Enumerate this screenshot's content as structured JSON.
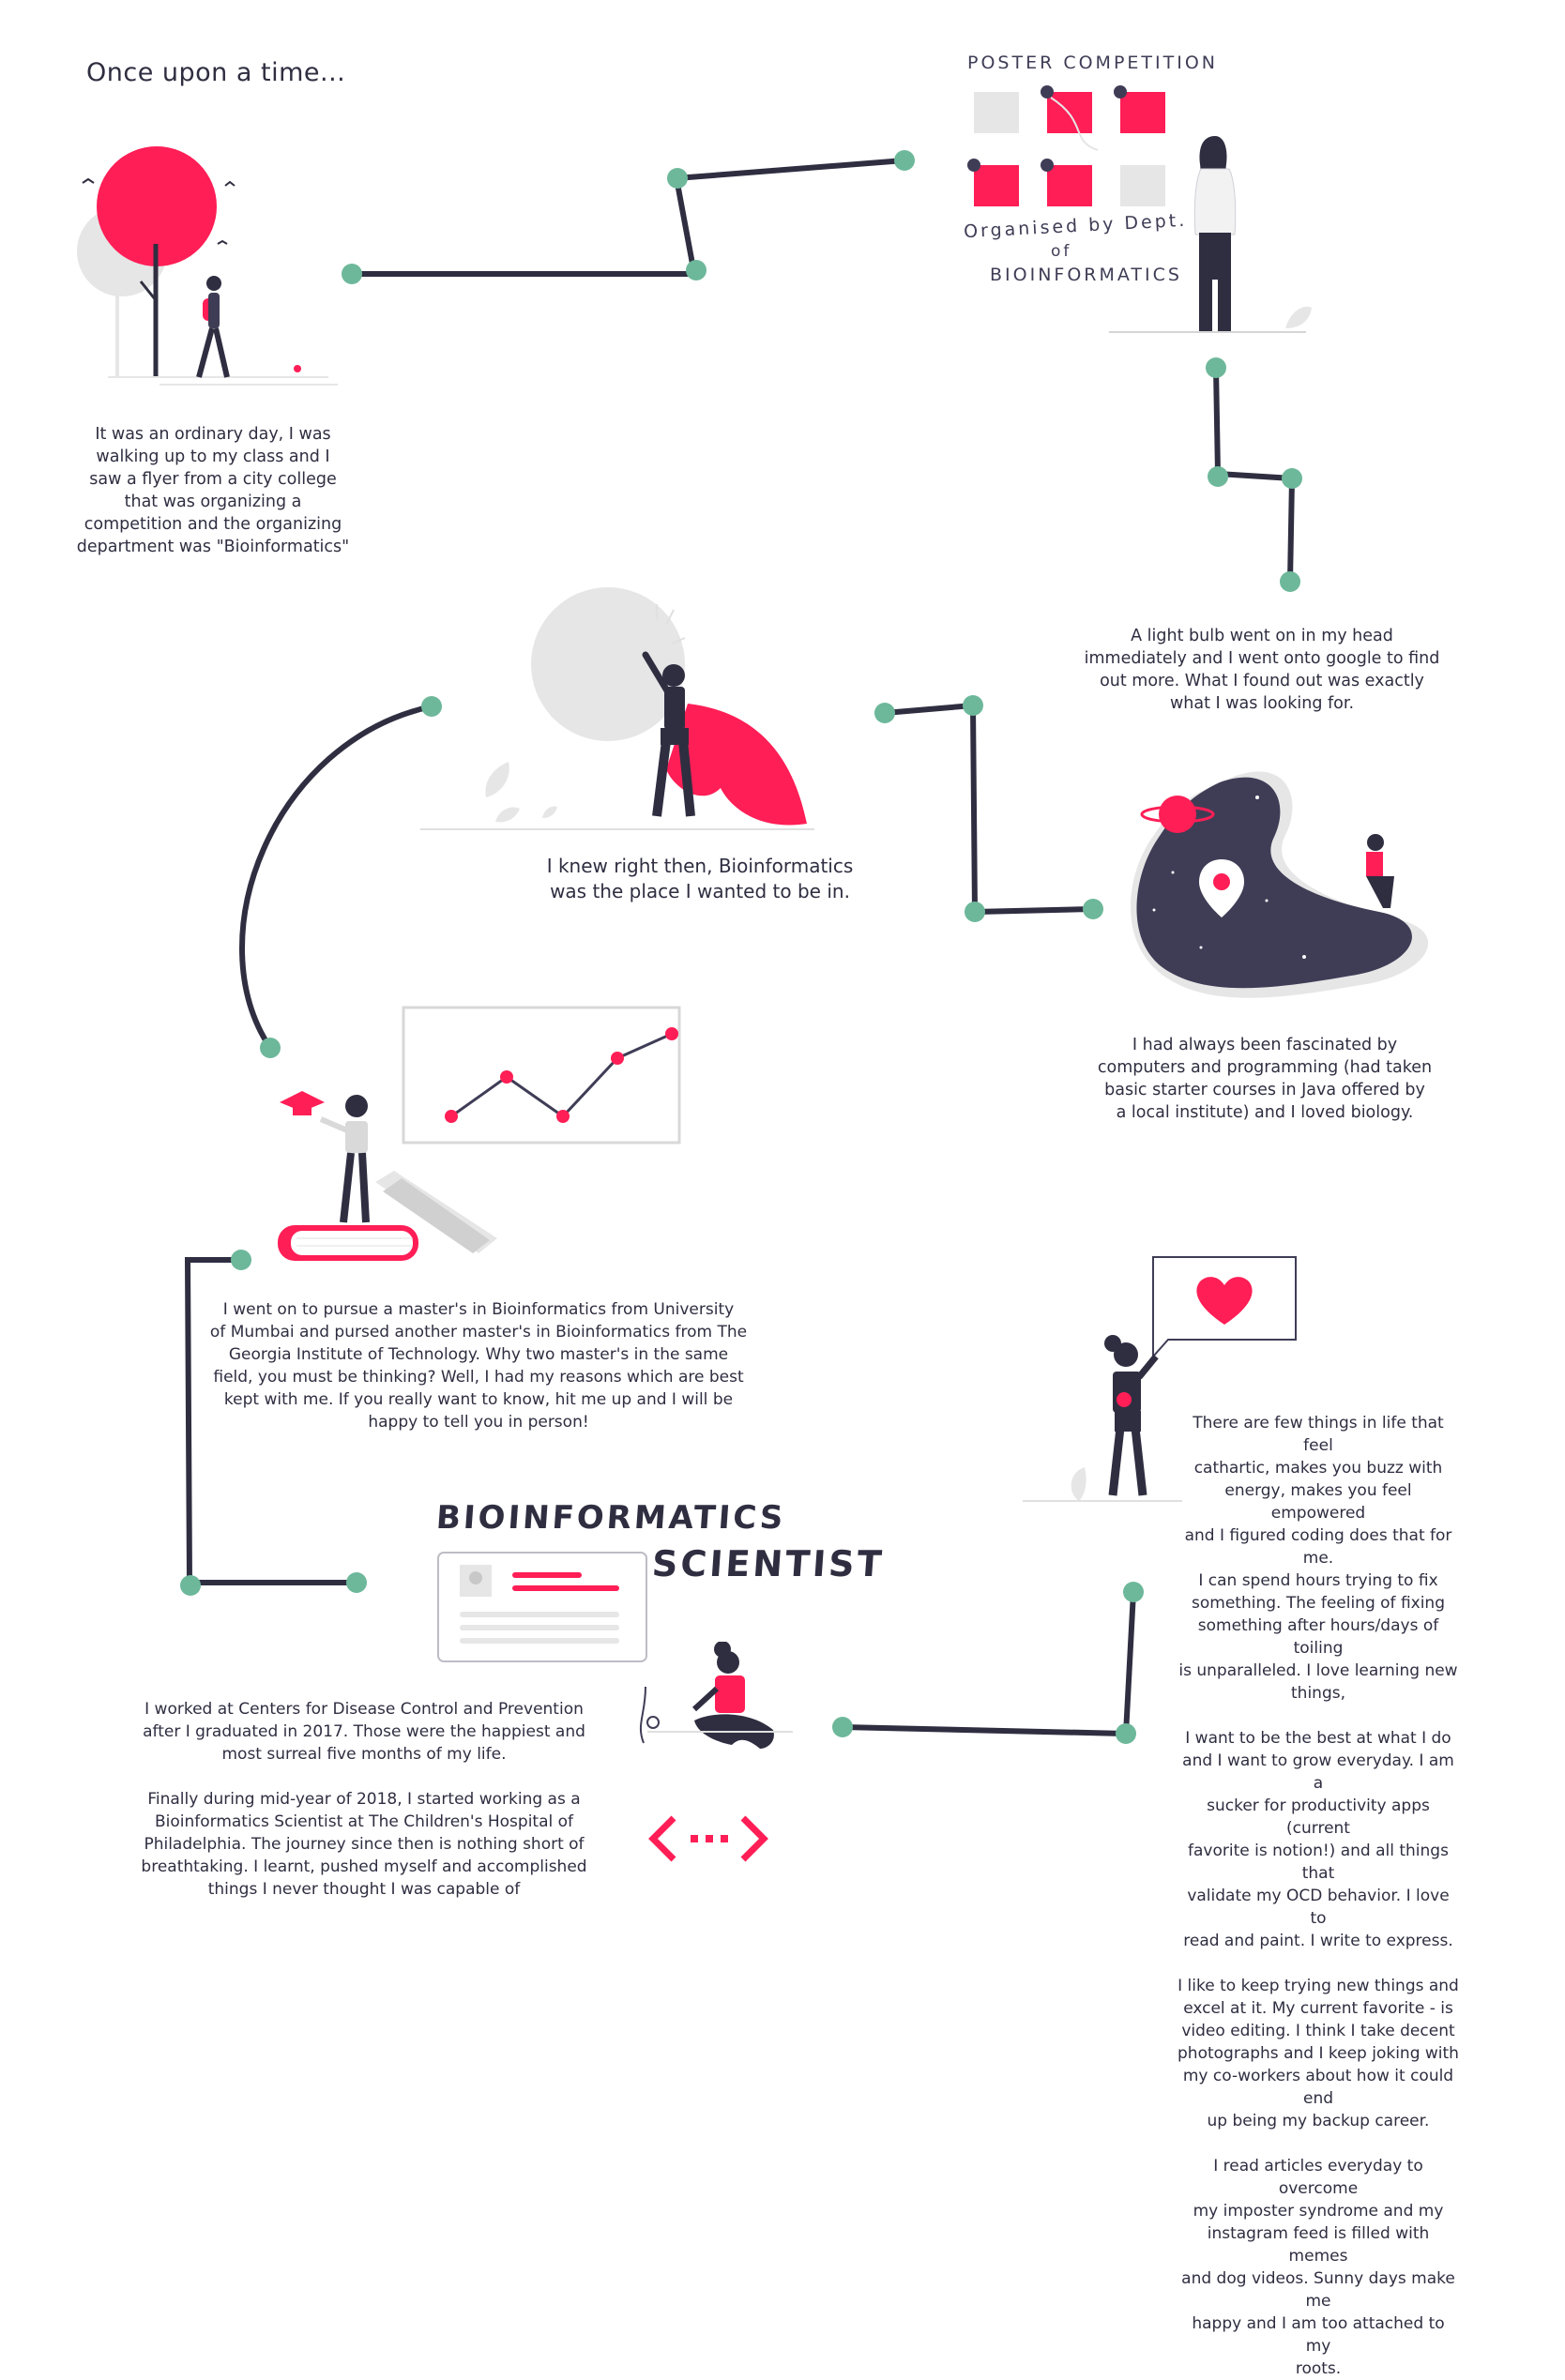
{
  "title": "Once upon a time...",
  "poster": {
    "heading": "POSTER COMPETITION",
    "organised_line1": "Organised by Dept.",
    "organised_line2": "of",
    "organised_line3": "BIOINFORMATICS"
  },
  "job_title": {
    "line1": "BIOINFORMATICS",
    "line2": "SCIENTIST"
  },
  "code_icon": "<···>",
  "stories": {
    "s1": "It was an ordinary day, I was\nwalking up to my class and I\nsaw a flyer from a city college\nthat was organizing a\ncompetition and the organizing\ndepartment was \"Bioinformatics\"",
    "s2": "A light bulb went on in my head\nimmediately and I went onto google to find\nout more. What I found out was exactly\nwhat I was looking for.",
    "s3": "I knew right then, Bioinformatics\nwas the place I wanted to be in.",
    "s4": "I had always been fascinated by\ncomputers and programming (had taken\nbasic starter courses in Java offered by\na local institute) and I loved biology.",
    "s5": "I went on to pursue a master's in Bioinformatics from University\nof Mumbai and pursed another master's in Bioinformatics from The\nGeorgia Institute of Technology. Why two master's in the same\nfield, you must be thinking? Well, I had my reasons which are best\nkept with me. If you really want to know, hit me up and I will be\nhappy to tell you in person!",
    "s6": "I worked at Centers for Disease Control and Prevention\nafter I graduated in 2017. Those were the happiest and\nmost surreal five months of my life.\n\nFinally during mid-year of 2018, I started working as a\nBioinformatics Scientist at The Children's Hospital of\nPhiladelphia. The journey since then is nothing short of\nbreathtaking. I learnt, pushed myself and accomplished\nthings I never thought I was capable of",
    "s7": "There are few things in life that feel\ncathartic, makes you buzz with\nenergy, makes you feel empowered\nand I figured coding does that for me.\nI can spend hours trying to fix\nsomething. The feeling of fixing\nsomething after hours/days of toiling\nis unparalleled. I love learning new\nthings,\n\nI want to be the best at what I do\nand I want to grow everyday. I am a\nsucker for productivity apps (current\nfavorite is notion!) and all things that\nvalidate my OCD behavior. I love to\nread and paint. I write to express.\n\nI like to keep trying new things and\nexcel at it. My current favorite - is\nvideo editing. I think I take decent\nphotographs and I keep joking with\nmy co-workers about how it could end\nup being my backup career.\n\nI read articles everyday to overcome\nmy imposter syndrome and my\ninstagram feed is filled with memes\nand dog videos. Sunny days make me\nhappy and I am too attached to my\nroots."
  },
  "colors": {
    "accent": "#ff1e56",
    "dark": "#2f2e41",
    "node": "#6db89a",
    "light": "#e6e6e6"
  },
  "icons": [
    "tree-icon",
    "woman-walking-icon",
    "poster-grid-icon",
    "woman-standing-icon",
    "superhero-icon",
    "space-blob-icon",
    "location-pin-icon",
    "magnifier-icon",
    "planet-icon",
    "graduate-icon",
    "line-graph-icon",
    "books-icon",
    "heart-bubble-icon",
    "woman-heart-icon",
    "profile-card-icon",
    "woman-laptop-icon",
    "code-brackets-icon"
  ]
}
